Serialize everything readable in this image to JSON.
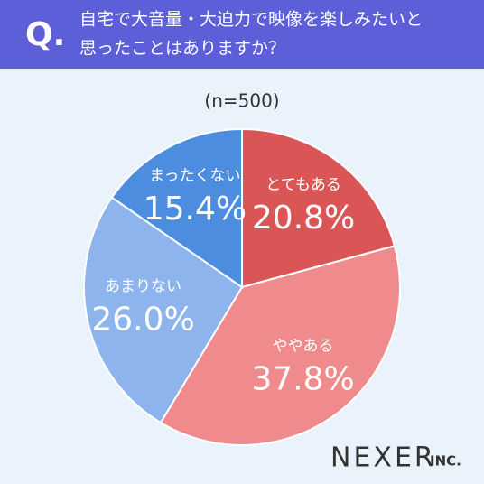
{
  "chart_data": {
    "type": "pie",
    "marker": "Q.",
    "title": [
      "自宅で大音量・大迫力で映像を楽しみたいと",
      "思ったことはありますか？"
    ],
    "subtitle": "(n=500)",
    "categories": [
      "とてもある",
      "ややある",
      "あまりない",
      "まったくない"
    ],
    "values": [
      20.8,
      37.8,
      26.0,
      15.4
    ],
    "value_labels": [
      "20.8%",
      "37.8%",
      "26.0%",
      "15.4%"
    ],
    "colors": [
      "#d95556",
      "#ef8b8c",
      "#8db4ec",
      "#4d8de0"
    ],
    "logo": {
      "name": "NEXER",
      "suffix": "INC."
    }
  }
}
